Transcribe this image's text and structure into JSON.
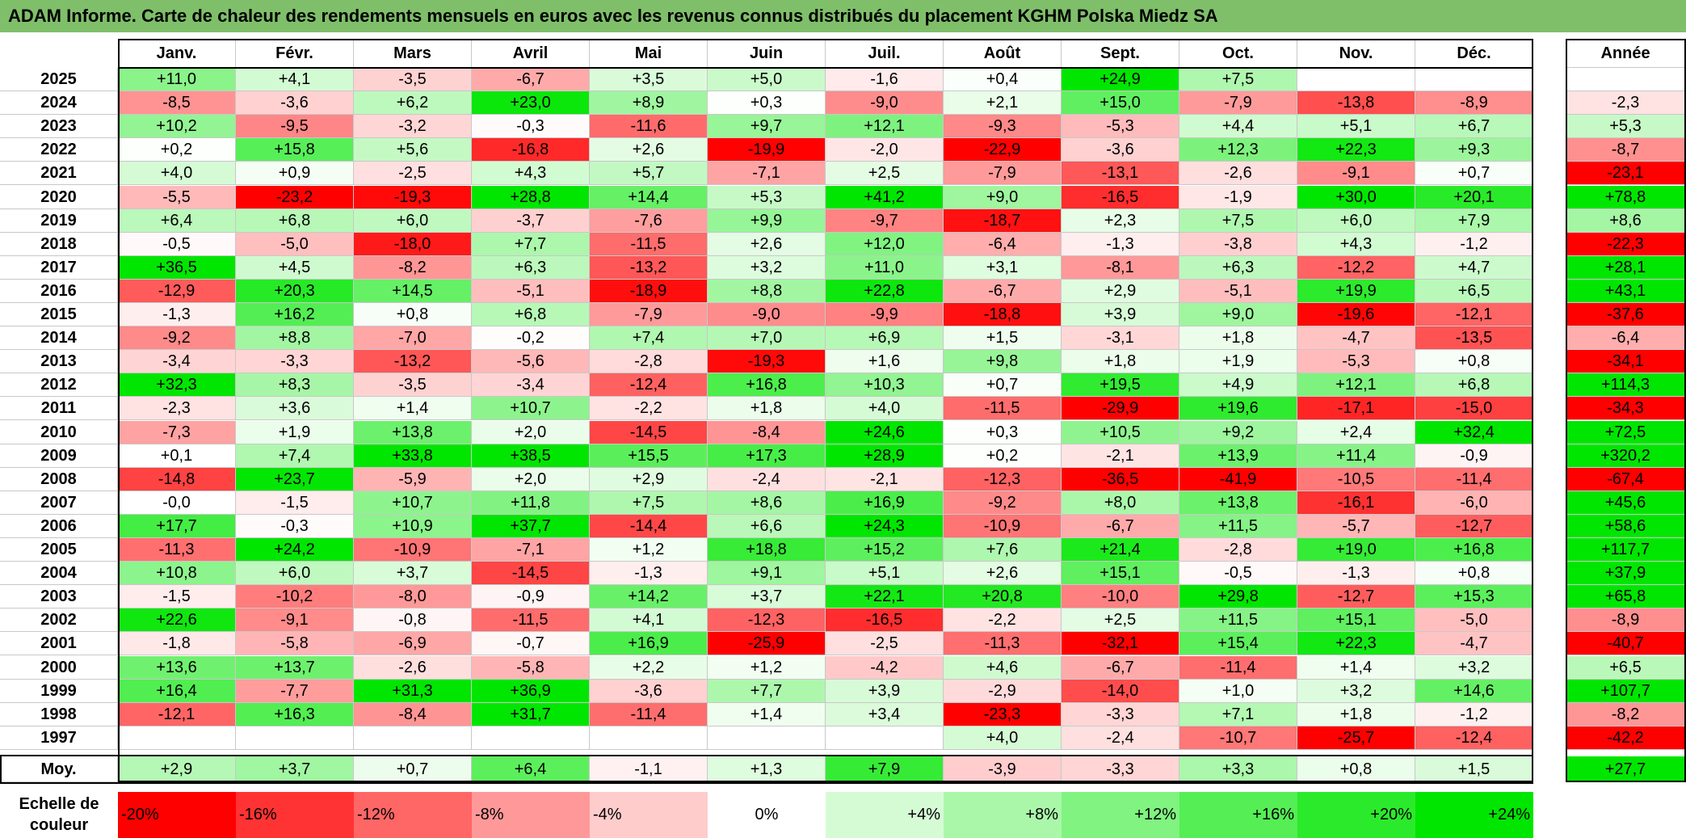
{
  "title": "ADAM Informe. Carte de chaleur des rendements mensuels en euros avec les revenus connus distribués du placement KGHM Polska Miedz SA",
  "colors": {
    "title_bg": "#7fbf6a",
    "neg_max": "#ff0000",
    "pos_max": "#00e600",
    "neutral": "#ffffff"
  },
  "chart_data": {
    "type": "heatmap",
    "title": "ADAM Informe. Carte de chaleur des rendements mensuels en euros avec les revenus connus distribués du placement KGHM Polska Miedz SA",
    "months": [
      "Janv.",
      "Févr.",
      "Mars",
      "Avril",
      "Mai",
      "Juin",
      "Juil.",
      "Août",
      "Sept.",
      "Oct.",
      "Nov.",
      "Déc."
    ],
    "year_header": "Année",
    "avg_label": "Moy.",
    "rows": [
      {
        "year": "2025",
        "values": [
          "+11,0",
          "+4,1",
          "-3,5",
          "-6,7",
          "+3,5",
          "+5,0",
          "-1,6",
          "+0,4",
          "+24,9",
          "+7,5",
          "",
          ""
        ],
        "annual": ""
      },
      {
        "year": "2024",
        "values": [
          "-8,5",
          "-3,6",
          "+6,2",
          "+23,0",
          "+8,9",
          "+0,3",
          "-9,0",
          "+2,1",
          "+15,0",
          "-7,9",
          "-13,8",
          "-8,9"
        ],
        "annual": "-2,3"
      },
      {
        "year": "2023",
        "values": [
          "+10,2",
          "-9,5",
          "-3,2",
          "-0,3",
          "-11,6",
          "+9,7",
          "+12,1",
          "-9,3",
          "-5,3",
          "+4,4",
          "+5,1",
          "+6,7"
        ],
        "annual": "+5,3"
      },
      {
        "year": "2022",
        "values": [
          "+0,2",
          "+15,8",
          "+5,6",
          "-16,8",
          "+2,6",
          "-19,9",
          "-2,0",
          "-22,9",
          "-3,6",
          "+12,3",
          "+22,3",
          "+9,3"
        ],
        "annual": "-8,7"
      },
      {
        "year": "2021",
        "values": [
          "+4,0",
          "+0,9",
          "-2,5",
          "+4,3",
          "+5,7",
          "-7,1",
          "+2,5",
          "-7,9",
          "-13,1",
          "-2,6",
          "-9,1",
          "+0,7"
        ],
        "annual": "-23,1"
      },
      {
        "year": "2020",
        "values": [
          "-5,5",
          "-23,2",
          "-19,3",
          "+28,8",
          "+14,4",
          "+5,3",
          "+41,2",
          "+9,0",
          "-16,5",
          "-1,9",
          "+30,0",
          "+20,1"
        ],
        "annual": "+78,8"
      },
      {
        "year": "2019",
        "values": [
          "+6,4",
          "+6,8",
          "+6,0",
          "-3,7",
          "-7,6",
          "+9,9",
          "-9,7",
          "-18,7",
          "+2,3",
          "+7,5",
          "+6,0",
          "+7,9"
        ],
        "annual": "+8,6"
      },
      {
        "year": "2018",
        "values": [
          "-0,5",
          "-5,0",
          "-18,0",
          "+7,7",
          "-11,5",
          "+2,6",
          "+12,0",
          "-6,4",
          "-1,3",
          "-3,8",
          "+4,3",
          "-1,2"
        ],
        "annual": "-22,3"
      },
      {
        "year": "2017",
        "values": [
          "+36,5",
          "+4,5",
          "-8,2",
          "+6,3",
          "-13,2",
          "+3,2",
          "+11,0",
          "+3,1",
          "-8,1",
          "+6,3",
          "-12,2",
          "+4,7"
        ],
        "annual": "+28,1"
      },
      {
        "year": "2016",
        "values": [
          "-12,9",
          "+20,3",
          "+14,5",
          "-5,1",
          "-18,9",
          "+8,8",
          "+22,8",
          "-6,7",
          "+2,9",
          "-5,1",
          "+19,9",
          "+6,5"
        ],
        "annual": "+43,1"
      },
      {
        "year": "2015",
        "values": [
          "-1,3",
          "+16,2",
          "+0,8",
          "+6,8",
          "-7,9",
          "-9,0",
          "-9,9",
          "-18,8",
          "+3,9",
          "+9,0",
          "-19,6",
          "-12,1"
        ],
        "annual": "-37,6"
      },
      {
        "year": "2014",
        "values": [
          "-9,2",
          "+8,8",
          "-7,0",
          "-0,2",
          "+7,4",
          "+7,0",
          "+6,9",
          "+1,5",
          "-3,1",
          "+1,8",
          "-4,7",
          "-13,5"
        ],
        "annual": "-6,4"
      },
      {
        "year": "2013",
        "values": [
          "-3,4",
          "-3,3",
          "-13,2",
          "-5,6",
          "-2,8",
          "-19,3",
          "+1,6",
          "+9,8",
          "+1,8",
          "+1,9",
          "-5,3",
          "+0,8"
        ],
        "annual": "-34,1"
      },
      {
        "year": "2012",
        "values": [
          "+32,3",
          "+8,3",
          "-3,5",
          "-3,4",
          "-12,4",
          "+16,8",
          "+10,3",
          "+0,7",
          "+19,5",
          "+4,9",
          "+12,1",
          "+6,8"
        ],
        "annual": "+114,3"
      },
      {
        "year": "2011",
        "values": [
          "-2,3",
          "+3,6",
          "+1,4",
          "+10,7",
          "-2,2",
          "+1,8",
          "+4,0",
          "-11,5",
          "-29,9",
          "+19,6",
          "-17,1",
          "-15,0"
        ],
        "annual": "-34,3"
      },
      {
        "year": "2010",
        "values": [
          "-7,3",
          "+1,9",
          "+13,8",
          "+2,0",
          "-14,5",
          "-8,4",
          "+24,6",
          "+0,3",
          "+10,5",
          "+9,2",
          "+2,4",
          "+32,4"
        ],
        "annual": "+72,5"
      },
      {
        "year": "2009",
        "values": [
          "+0,1",
          "+7,4",
          "+33,8",
          "+38,5",
          "+15,5",
          "+17,3",
          "+28,9",
          "+0,2",
          "-2,1",
          "+13,9",
          "+11,4",
          "-0,9"
        ],
        "annual": "+320,2"
      },
      {
        "year": "2008",
        "values": [
          "-14,8",
          "+23,7",
          "-5,9",
          "+2,0",
          "+2,9",
          "-2,4",
          "-2,1",
          "-12,3",
          "-36,5",
          "-41,9",
          "-10,5",
          "-11,4"
        ],
        "annual": "-67,4"
      },
      {
        "year": "2007",
        "values": [
          "-0,0",
          "-1,5",
          "+10,7",
          "+11,8",
          "+7,5",
          "+8,6",
          "+16,9",
          "-9,2",
          "+8,0",
          "+13,8",
          "-16,1",
          "-6,0"
        ],
        "annual": "+45,6"
      },
      {
        "year": "2006",
        "values": [
          "+17,7",
          "-0,3",
          "+10,9",
          "+37,7",
          "-14,4",
          "+6,6",
          "+24,3",
          "-10,9",
          "-6,7",
          "+11,5",
          "-5,7",
          "-12,7"
        ],
        "annual": "+58,6"
      },
      {
        "year": "2005",
        "values": [
          "-11,3",
          "+24,2",
          "-10,9",
          "-7,1",
          "+1,2",
          "+18,8",
          "+15,2",
          "+7,6",
          "+21,4",
          "-2,8",
          "+19,0",
          "+16,8"
        ],
        "annual": "+117,7"
      },
      {
        "year": "2004",
        "values": [
          "+10,8",
          "+6,0",
          "+3,7",
          "-14,5",
          "-1,3",
          "+9,1",
          "+5,1",
          "+2,6",
          "+15,1",
          "-0,5",
          "-1,3",
          "+0,8"
        ],
        "annual": "+37,9"
      },
      {
        "year": "2003",
        "values": [
          "-1,5",
          "-10,2",
          "-8,0",
          "-0,9",
          "+14,2",
          "+3,7",
          "+22,1",
          "+20,8",
          "-10,0",
          "+29,8",
          "-12,7",
          "+15,3"
        ],
        "annual": "+65,8"
      },
      {
        "year": "2002",
        "values": [
          "+22,6",
          "-9,1",
          "-0,8",
          "-11,5",
          "+4,1",
          "-12,3",
          "-16,5",
          "-2,2",
          "+2,5",
          "+11,5",
          "+15,1",
          "-5,0"
        ],
        "annual": "-8,9"
      },
      {
        "year": "2001",
        "values": [
          "-1,8",
          "-5,8",
          "-6,9",
          "-0,7",
          "+16,9",
          "-25,9",
          "-2,5",
          "-11,3",
          "-32,1",
          "+15,4",
          "+22,3",
          "-4,7"
        ],
        "annual": "-40,7"
      },
      {
        "year": "2000",
        "values": [
          "+13,6",
          "+13,7",
          "-2,6",
          "-5,8",
          "+2,2",
          "+1,2",
          "-4,2",
          "+4,6",
          "-6,7",
          "-11,4",
          "+1,4",
          "+3,2"
        ],
        "annual": "+6,5"
      },
      {
        "year": "1999",
        "values": [
          "+16,4",
          "-7,7",
          "+31,3",
          "+36,9",
          "-3,6",
          "+7,7",
          "+3,9",
          "-2,9",
          "-14,0",
          "+1,0",
          "+3,2",
          "+14,6"
        ],
        "annual": "+107,7"
      },
      {
        "year": "1998",
        "values": [
          "-12,1",
          "+16,3",
          "-8,4",
          "+31,7",
          "-11,4",
          "+1,4",
          "+3,4",
          "-23,3",
          "-3,3",
          "+7,1",
          "+1,8",
          "-1,2"
        ],
        "annual": "-8,2"
      },
      {
        "year": "1997",
        "values": [
          "",
          "",
          "",
          "",
          "",
          "",
          "",
          "+4,0",
          "-2,4",
          "-10,7",
          "-25,7",
          "-12,4"
        ],
        "annual": "-42,2"
      }
    ],
    "averages": {
      "values": [
        "+2,9",
        "+3,7",
        "+0,7",
        "+6,4",
        "-1,1",
        "+1,3",
        "+7,9",
        "-3,9",
        "-3,3",
        "+3,3",
        "+0,8",
        "+1,5"
      ],
      "annual": "+27,7"
    },
    "scale_label": "Echelle de couleur",
    "scale": [
      {
        "label": "-20%",
        "value": -20
      },
      {
        "label": "-16%",
        "value": -16
      },
      {
        "label": "-12%",
        "value": -12
      },
      {
        "label": "-8%",
        "value": -8
      },
      {
        "label": "-4%",
        "value": -4
      },
      {
        "label": "0%",
        "value": 0
      },
      {
        "label": "+4%",
        "value": 4
      },
      {
        "label": "+8%",
        "value": 8
      },
      {
        "label": "+12%",
        "value": 12
      },
      {
        "label": "+16%",
        "value": 16
      },
      {
        "label": "+20%",
        "value": 20
      },
      {
        "label": "+24%",
        "value": 24
      }
    ]
  }
}
